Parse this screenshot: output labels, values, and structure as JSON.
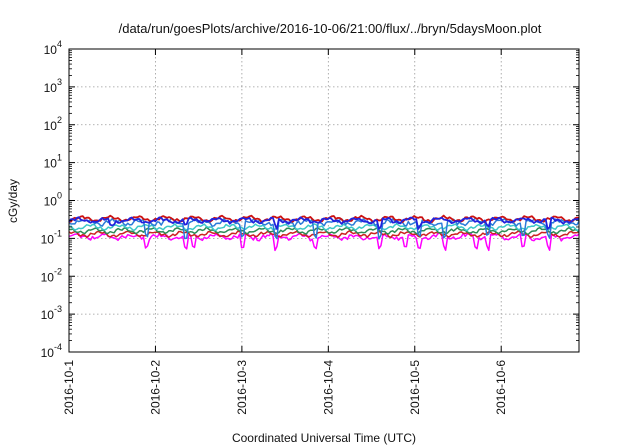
{
  "chart_data": {
    "type": "line",
    "title": "/data/run/goesPlots/archive/2016-10-06/21:00/flux/../bryn/5daysMoon.plot",
    "xlabel": "Coordinated Universal Time (UTC)",
    "ylabel": "cGy/day",
    "x_tick_labels": [
      "2016-10-1",
      "2016-10-2",
      "2016-10-3",
      "2016-10-4",
      "2016-10-5",
      "2016-10-6"
    ],
    "xlim_days": [
      0,
      5.9
    ],
    "y_scale": "log",
    "ylim": [
      0.0001,
      10000
    ],
    "y_ticks": [
      {
        "base": "10",
        "exp": "-4"
      },
      {
        "base": "10",
        "exp": "-3"
      },
      {
        "base": "10",
        "exp": "-2"
      },
      {
        "base": "10",
        "exp": "-1"
      },
      {
        "base": "10",
        "exp": "0"
      },
      {
        "base": "10",
        "exp": "1"
      },
      {
        "base": "10",
        "exp": "2"
      },
      {
        "base": "10",
        "exp": "3"
      },
      {
        "base": "10",
        "exp": "4"
      }
    ],
    "grid": true,
    "legend": "none",
    "series": [
      {
        "color": "#ff00ff",
        "base": 0.11,
        "noise": 0.22,
        "spikes_down": [
          0.9,
          1.35,
          1.45,
          2.0,
          2.4,
          2.85,
          3.6,
          3.9,
          4.05,
          4.35,
          4.7,
          4.85,
          5.25,
          5.55
        ],
        "spike_depth": 0.06
      },
      {
        "color": "#cc2222",
        "base": 0.13,
        "noise": 0.08,
        "spikes_down": [],
        "spike_depth": 0.12
      },
      {
        "color": "#2e8b57",
        "base": 0.16,
        "noise": 0.08,
        "spikes_down": [],
        "spike_depth": 0.14
      },
      {
        "color": "#3cc8c8",
        "base": 0.2,
        "noise": 0.08,
        "spikes_down": [],
        "spike_depth": 0.17
      },
      {
        "color": "#2a7bd8",
        "base": 0.27,
        "noise": 0.18,
        "spikes_down": [
          0.9,
          1.35,
          2.0,
          2.4,
          2.85,
          3.6,
          4.05,
          4.35,
          4.85,
          5.25,
          5.55
        ],
        "spike_depth": 0.12
      },
      {
        "color": "#cc1111",
        "base": 0.33,
        "noise": 0.07,
        "spikes_down": [],
        "spike_depth": 0.3
      },
      {
        "color": "#2222dd",
        "base": 0.3,
        "noise": 0.1,
        "spikes_down": [
          0.5,
          1.35,
          2.4,
          3.6,
          4.05,
          4.85,
          5.55
        ],
        "spike_depth": 0.22
      }
    ]
  }
}
